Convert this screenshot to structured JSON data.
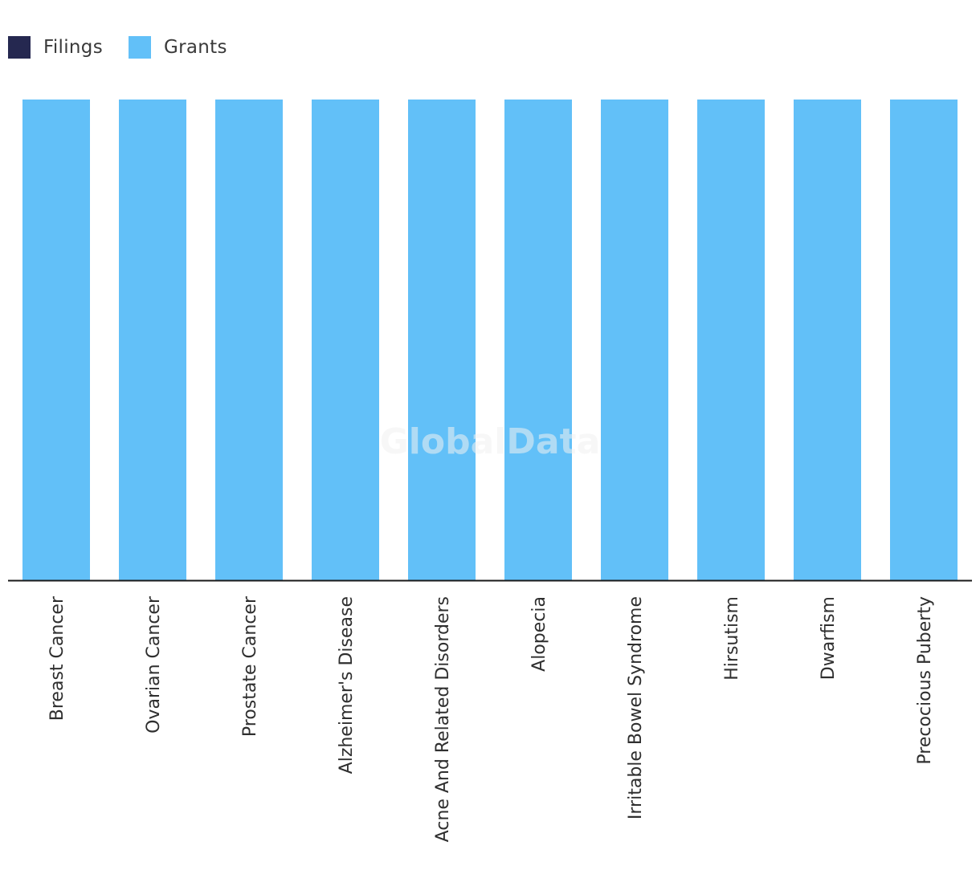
{
  "watermark": "GlobalData",
  "chart_data": {
    "type": "bar",
    "categories": [
      "Breast Cancer",
      "Ovarian Cancer",
      "Prostate Cancer",
      "Alzheimer's Disease",
      "Acne And Related Disorders",
      "Alopecia",
      "Irritable Bowel Syndrome",
      "Hirsutism",
      "Dwarfism",
      "Precocious Puberty"
    ],
    "series": [
      {
        "name": "Filings",
        "color": "#252850",
        "values": [
          0,
          0,
          0,
          0,
          0,
          0,
          0,
          0,
          0,
          0
        ]
      },
      {
        "name": "Grants",
        "color": "#62c0f8",
        "values": [
          1,
          1,
          1,
          1,
          1,
          1,
          1,
          1,
          1,
          1
        ]
      }
    ],
    "ylim": [
      0,
      1
    ],
    "stacked": true,
    "legend_position": "top-left",
    "grid": false
  }
}
